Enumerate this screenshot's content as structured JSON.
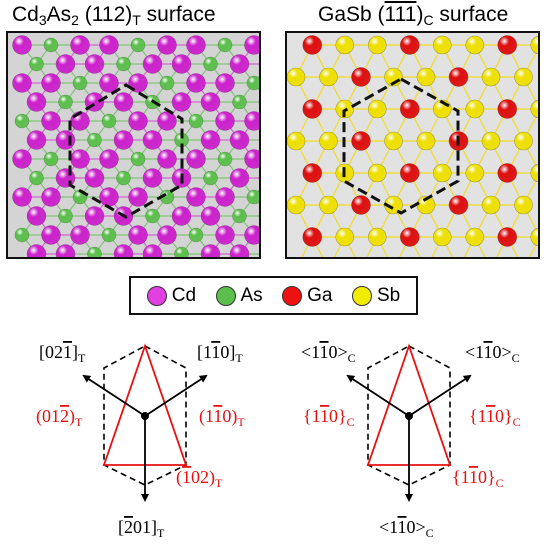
{
  "titles": {
    "left": {
      "main": "Cd",
      "s1": "3",
      "mid": "As",
      "s2": "2",
      "rest": " (112)",
      "s3": "T",
      "tail": " surface"
    },
    "right": {
      "main": "GaSb (",
      "bar": "111",
      "rest": ")",
      "s1": "C",
      "tail": " surface"
    }
  },
  "legend": [
    {
      "label": "Cd",
      "color": "#e040e0"
    },
    {
      "label": "As",
      "color": "#5cbf4c"
    },
    {
      "label": "Ga",
      "color": "#ee1111"
    },
    {
      "label": "Sb",
      "color": "#f2ea00"
    }
  ],
  "colors": {
    "cd": "#cc22cc",
    "as": "#5cbf4c",
    "ga": "#dd0f0f",
    "sb": "#eee000",
    "accent": "#ee1111"
  },
  "left_diagram": {
    "dir_top_left": "[021]",
    "dir_top_right": "[110]",
    "dir_bottom": "[201]",
    "plane_left": "(012)",
    "plane_right": "(110)",
    "plane_bottom": "(102)",
    "subscript": "T"
  },
  "right_diagram": {
    "dir_top_left": "<110>",
    "dir_top_right": "<110>",
    "dir_bottom": "<110>",
    "plane_left": "{110}",
    "plane_right": "{110}",
    "plane_bottom": "{110}",
    "subscript": "C"
  }
}
